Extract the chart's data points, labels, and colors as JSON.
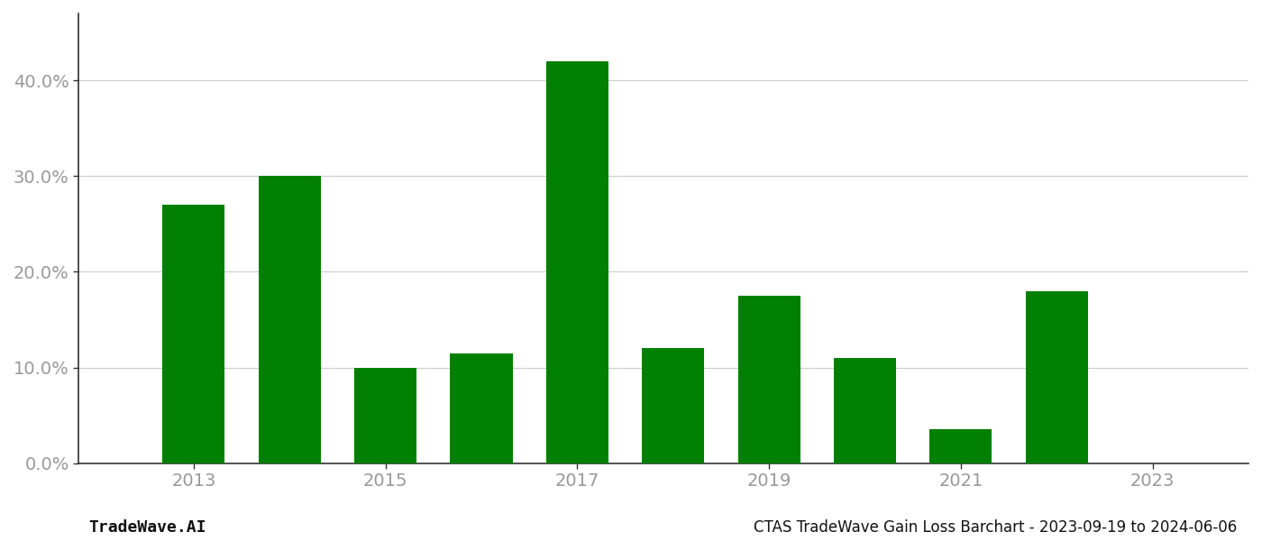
{
  "years": [
    2013,
    2014,
    2015,
    2016,
    2017,
    2018,
    2019,
    2020,
    2021,
    2022
  ],
  "values": [
    0.27,
    0.3,
    0.1,
    0.115,
    0.42,
    0.12,
    0.175,
    0.11,
    0.035,
    0.18
  ],
  "bar_color": "#008000",
  "background_color": "#ffffff",
  "ylim": [
    0,
    0.47
  ],
  "yticks": [
    0.0,
    0.1,
    0.2,
    0.3,
    0.4
  ],
  "ytick_labels": [
    "0.0%",
    "10.0%",
    "20.0%",
    "30.0%",
    "40.0%"
  ],
  "xtick_years": [
    2013,
    2015,
    2017,
    2019,
    2021,
    2023
  ],
  "footer_left": "TradeWave.AI",
  "footer_right": "CTAS TradeWave Gain Loss Barchart - 2023-09-19 to 2024-06-06",
  "grid_color": "#cccccc",
  "spine_color": "#333333",
  "tick_label_color": "#999999",
  "footer_color": "#111111",
  "bar_width": 0.65,
  "xlim_left": 2011.8,
  "xlim_right": 2024.0
}
